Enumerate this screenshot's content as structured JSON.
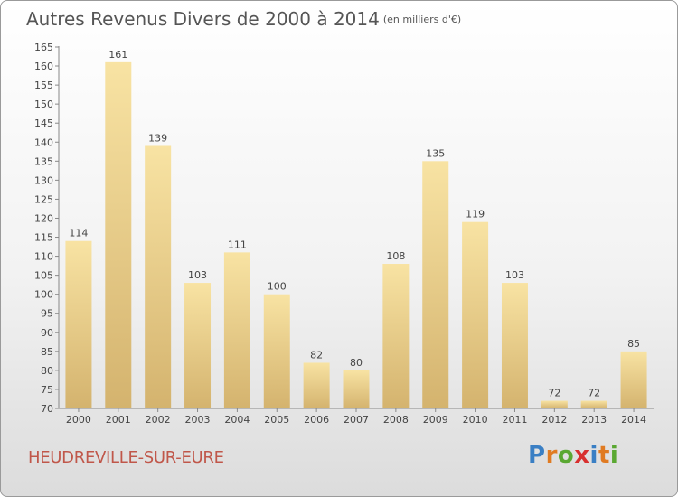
{
  "title": "Autres Revenus Divers de 2000 à 2014",
  "subtitle": "(en milliers d'€)",
  "place": "HEUDREVILLE-SUR-EURE",
  "logo": {
    "letters": [
      "P",
      "r",
      "o",
      "x",
      "i",
      "t",
      "i"
    ],
    "colors": [
      "#3a7fc4",
      "#e07b22",
      "#5aa832",
      "#d8302f",
      "#3a7fc4",
      "#e07b22",
      "#5aa832"
    ]
  },
  "colors": {
    "bar_light": "#f8e3a3",
    "bar_dark": "#d4b36e",
    "label": "#444444"
  },
  "chart_data": {
    "type": "bar",
    "categories": [
      "2000",
      "2001",
      "2002",
      "2003",
      "2004",
      "2005",
      "2006",
      "2007",
      "2008",
      "2009",
      "2010",
      "2011",
      "2012",
      "2013",
      "2014"
    ],
    "values": [
      114,
      161,
      139,
      103,
      111,
      100,
      82,
      80,
      108,
      135,
      119,
      103,
      72,
      72,
      85
    ],
    "ylim": [
      70,
      165
    ],
    "yticks": [
      70,
      75,
      80,
      85,
      90,
      95,
      100,
      105,
      110,
      115,
      120,
      125,
      130,
      135,
      140,
      145,
      150,
      155,
      160,
      165
    ],
    "grid": false,
    "legend": "none"
  }
}
